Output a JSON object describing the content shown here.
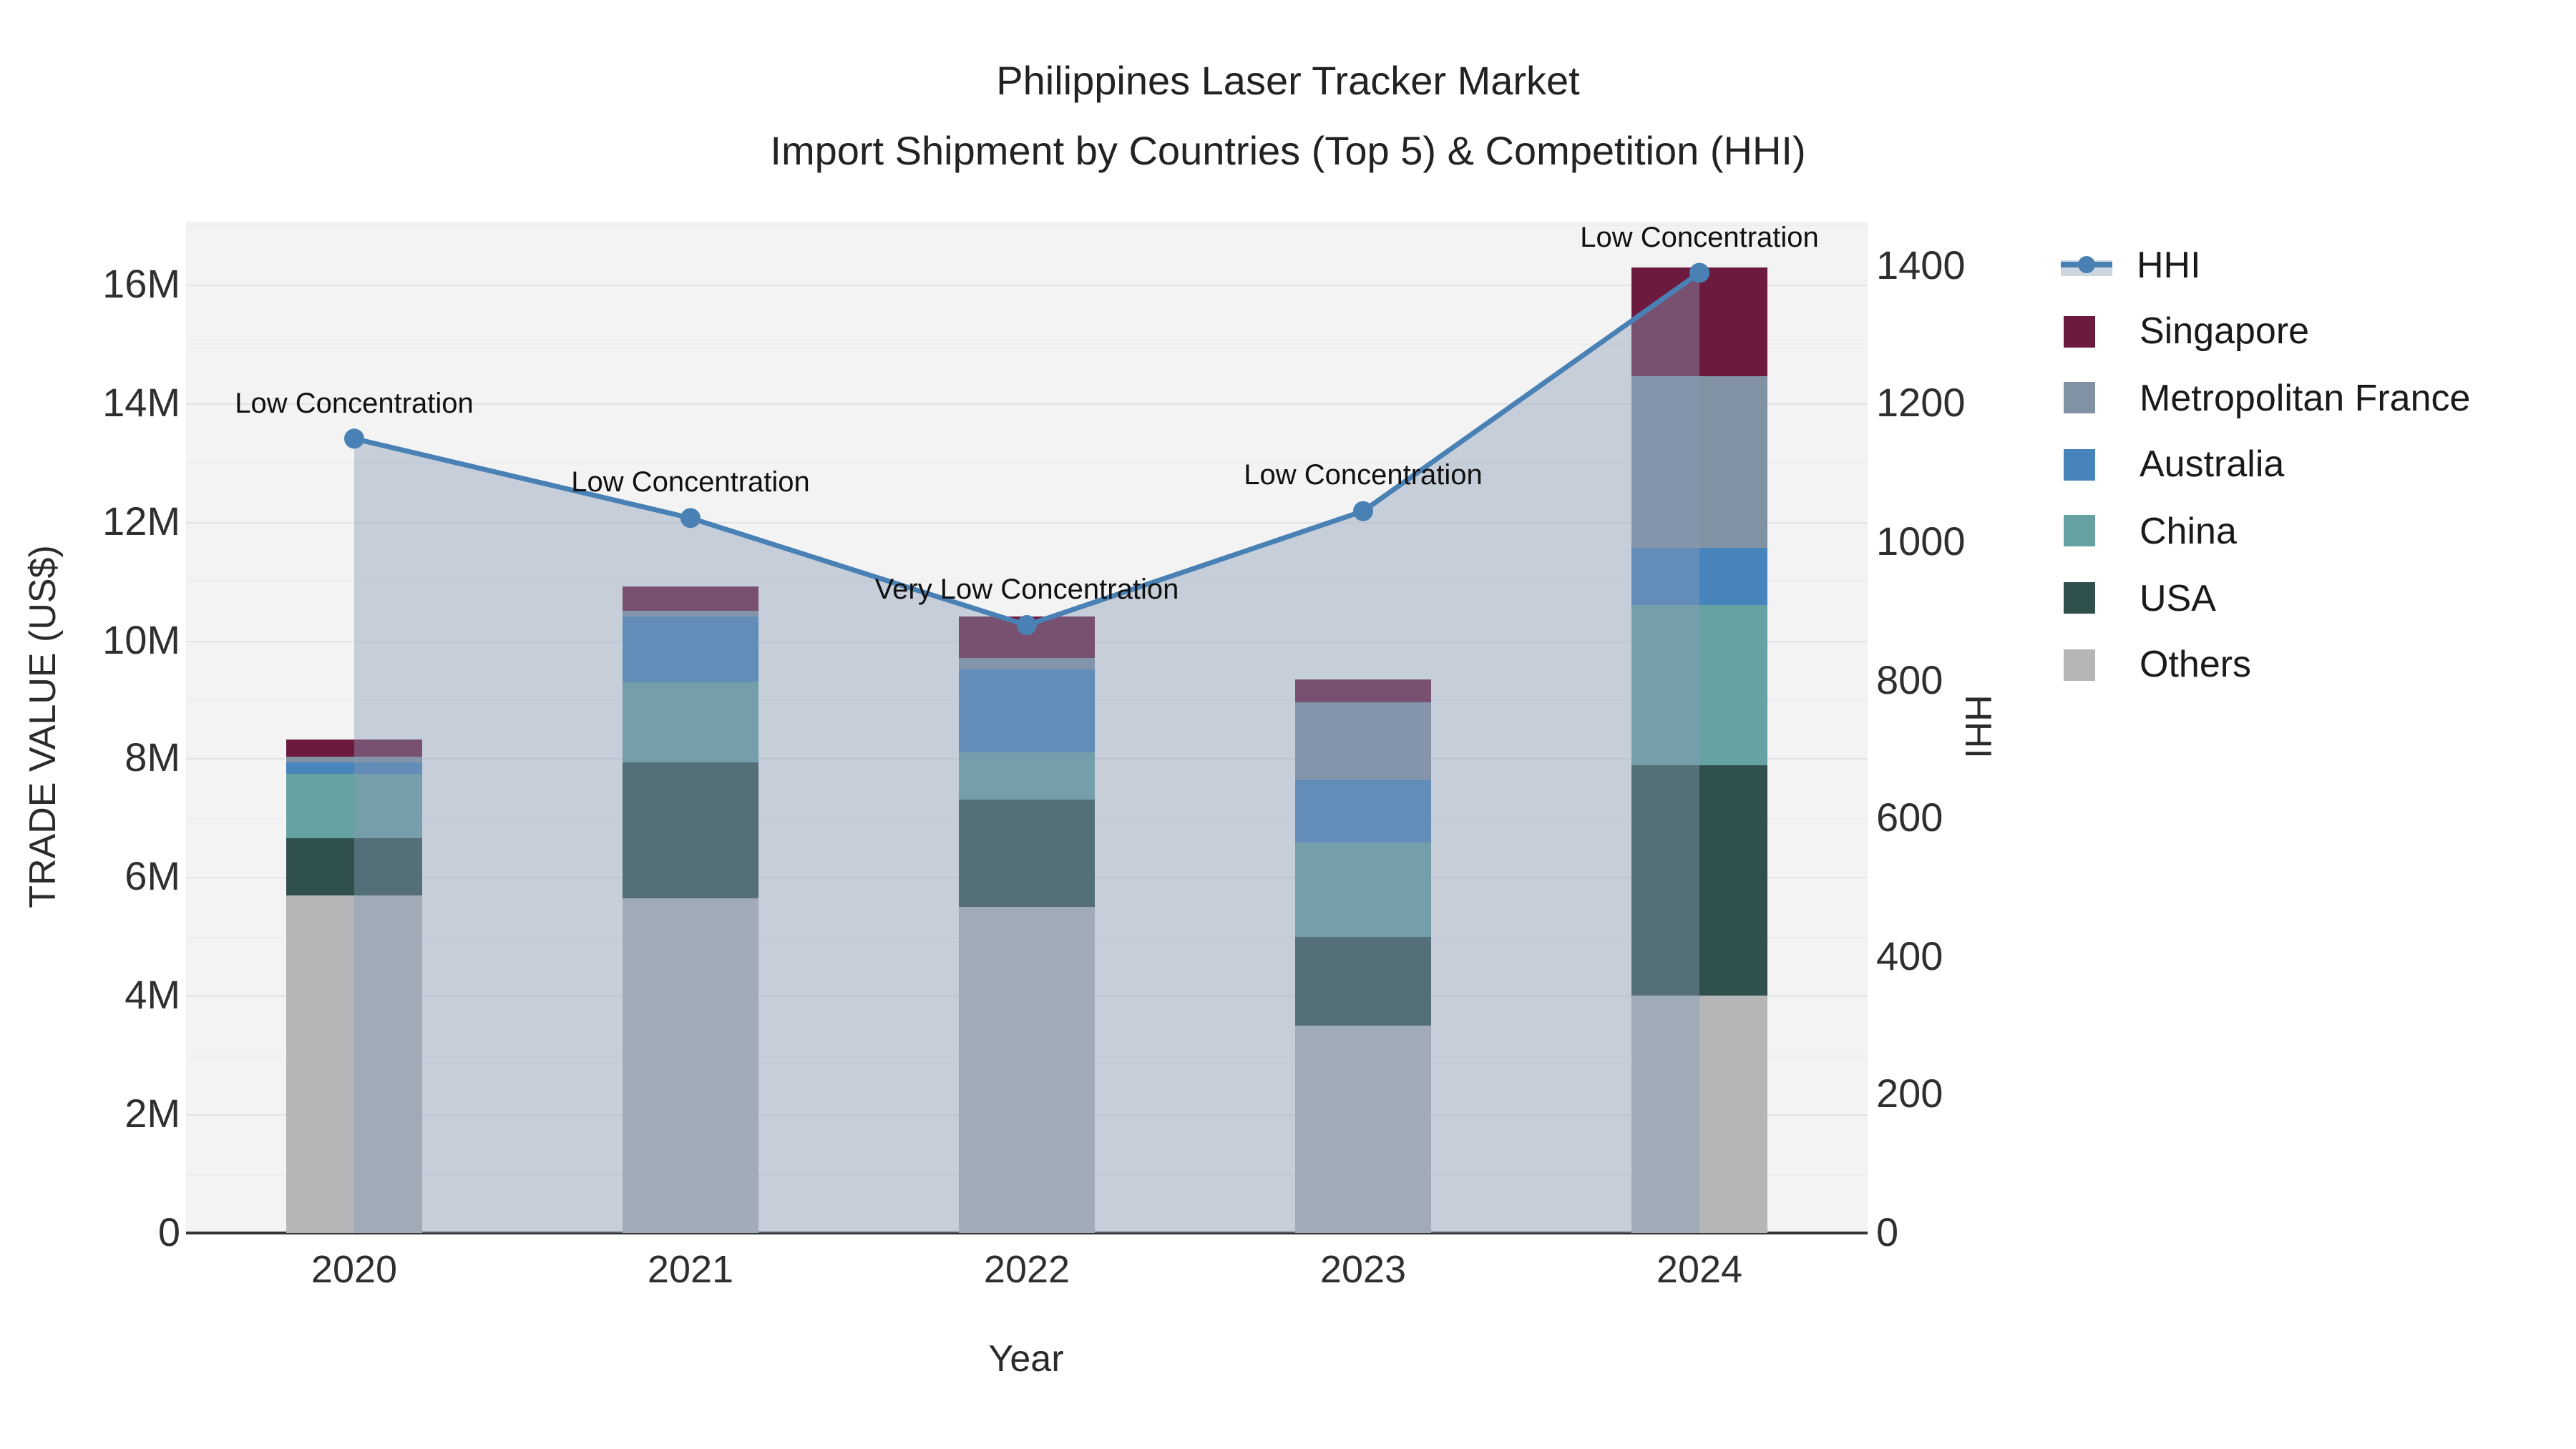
{
  "title": {
    "line1": "Philippines Laser Tracker Market",
    "line2": "Import Shipment by Countries (Top 5) & Competition (HHI)"
  },
  "axes": {
    "x_title": "Year",
    "y_left_title": "TRADE VALUE (US$)",
    "y_right_title": "HHI"
  },
  "chart_data": {
    "type": "bar+line",
    "title": "Philippines Laser Tracker Market — Import Shipment by Countries (Top 5) & Competition (HHI)",
    "categories": [
      "2020",
      "2021",
      "2022",
      "2023",
      "2024"
    ],
    "xlabel": "Year",
    "ylabel_left": "TRADE VALUE (US$)",
    "ylabel_right": "HHI",
    "y_left": {
      "min": 0,
      "max": 17.06,
      "unit": "millions US$",
      "ticks": [
        {
          "v": 0,
          "label": "0"
        },
        {
          "v": 2,
          "label": "2M"
        },
        {
          "v": 4,
          "label": "4M"
        },
        {
          "v": 6,
          "label": "6M"
        },
        {
          "v": 8,
          "label": "8M"
        },
        {
          "v": 10,
          "label": "10M"
        },
        {
          "v": 12,
          "label": "12M"
        },
        {
          "v": 14,
          "label": "14M"
        },
        {
          "v": 16,
          "label": "16M"
        }
      ]
    },
    "y_right": {
      "min": 0,
      "max": 1464,
      "ticks": [
        {
          "v": 0,
          "label": "0"
        },
        {
          "v": 200,
          "label": "200"
        },
        {
          "v": 400,
          "label": "400"
        },
        {
          "v": 600,
          "label": "600"
        },
        {
          "v": 800,
          "label": "800"
        },
        {
          "v": 1000,
          "label": "1000"
        },
        {
          "v": 1200,
          "label": "1200"
        },
        {
          "v": 1400,
          "label": "1400"
        }
      ]
    },
    "stack_order_bottom_to_top": [
      "Others",
      "USA",
      "China",
      "Australia",
      "Metropolitan France",
      "Singapore"
    ],
    "series": [
      {
        "name": "Others",
        "color": "#b4b6b8",
        "values": [
          5.7,
          5.65,
          5.5,
          3.5,
          4.0
        ]
      },
      {
        "name": "USA",
        "color": "#2f504d",
        "values": [
          0.95,
          2.3,
          1.8,
          1.5,
          3.9
        ]
      },
      {
        "name": "China",
        "color": "#67a2a3",
        "values": [
          1.1,
          1.35,
          0.8,
          1.6,
          2.7
        ]
      },
      {
        "name": "Australia",
        "color": "#4784bb",
        "values": [
          0.2,
          1.1,
          1.4,
          1.05,
          0.95
        ]
      },
      {
        "name": "Metropolitan France",
        "color": "#8192a4",
        "values": [
          0.08,
          0.1,
          0.2,
          1.3,
          2.9
        ]
      },
      {
        "name": "Singapore",
        "color": "#6d1a3f",
        "values": [
          0.3,
          0.4,
          0.7,
          0.4,
          1.85
        ]
      }
    ],
    "bar_totals_millions": [
      8.33,
      10.9,
      10.4,
      9.35,
      16.3
    ],
    "hhi_line": {
      "name": "HHI",
      "color": "#4981b5",
      "fill_color": "rgba(137,155,180,0.42)",
      "values": [
        1150,
        1035,
        880,
        1045,
        1390
      ],
      "annotations": [
        "Low Concentration",
        "Low Concentration",
        "Very Low Concentration",
        "Low Concentration",
        "Low Concentration"
      ]
    },
    "legend_position": "right",
    "legend": [
      {
        "name": "HHI",
        "type": "line"
      },
      {
        "name": "Singapore",
        "type": "swatch",
        "color": "#6d1a3f"
      },
      {
        "name": "Metropolitan France",
        "type": "swatch",
        "color": "#8192a4"
      },
      {
        "name": "Australia",
        "type": "swatch",
        "color": "#4784bb"
      },
      {
        "name": "China",
        "type": "swatch",
        "color": "#67a2a3"
      },
      {
        "name": "USA",
        "type": "swatch",
        "color": "#2f504d"
      },
      {
        "name": "Others",
        "type": "swatch",
        "color": "#b4b6b8"
      }
    ],
    "grid": true
  },
  "colors": {
    "plot_bg": "#f3f3f4",
    "grid_major": "#e2e3e6",
    "grid_minor": "#ededf0",
    "axis_line": "#333333"
  }
}
